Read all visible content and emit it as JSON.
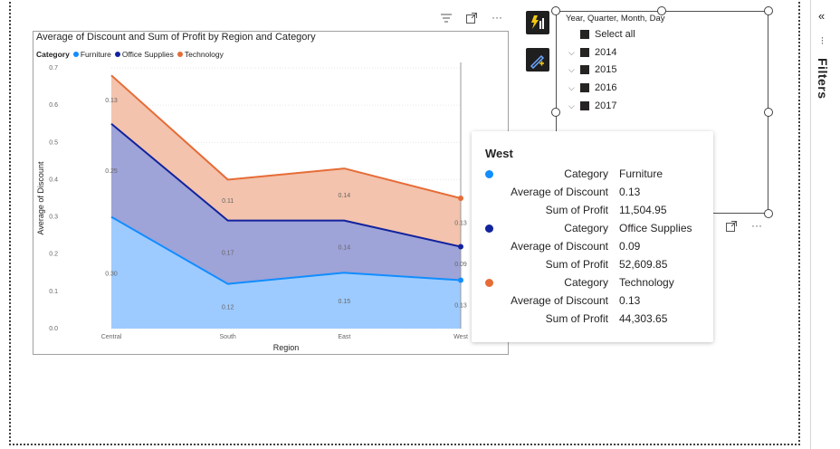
{
  "filters_pane": {
    "label": "Filters",
    "collapse_glyph": "«",
    "filter_glyph": "⫶"
  },
  "chart": {
    "title": "Average of Discount and Sum of Profit by Region and Category",
    "legend_title": "Category",
    "header_icons": [
      "filter-icon",
      "focus-mode-icon",
      "more-options-icon"
    ]
  },
  "chart_data": {
    "type": "area",
    "stacked": true,
    "categories": [
      "Central",
      "South",
      "East",
      "West"
    ],
    "series": [
      {
        "name": "Furniture",
        "color": "#118dff",
        "fill": "#9dcbff",
        "values": [
          0.3,
          0.12,
          0.15,
          0.13
        ]
      },
      {
        "name": "Office Supplies",
        "color": "#12239e",
        "fill": "#9ea3d8",
        "values": [
          0.25,
          0.17,
          0.14,
          0.09
        ]
      },
      {
        "name": "Technology",
        "color": "#e66c37",
        "fill": "#f3c3ad",
        "values": [
          0.13,
          0.11,
          0.14,
          0.13
        ]
      }
    ],
    "xlabel": "Region",
    "ylabel": "Average of Discount",
    "ylim": [
      0,
      0.7
    ],
    "yticks": [
      "0.0",
      "0.1",
      "0.2",
      "0.3",
      "0.4",
      "0.5",
      "0.6",
      "0.7"
    ],
    "grid": true,
    "legend_position": "top-left",
    "highlighted_category": "West"
  },
  "slicer": {
    "title": "Year, Quarter, Month, Day",
    "items": [
      {
        "label": "Select all",
        "expandable": false
      },
      {
        "label": "2014",
        "expandable": true
      },
      {
        "label": "2015",
        "expandable": true
      },
      {
        "label": "2016",
        "expandable": true
      },
      {
        "label": "2017",
        "expandable": true
      }
    ]
  },
  "tooltip": {
    "title": "West",
    "groups": [
      {
        "color": "#118dff",
        "rows": [
          {
            "key": "Category",
            "value": "Furniture"
          },
          {
            "key": "Average of Discount",
            "value": "0.13"
          },
          {
            "key": "Sum of Profit",
            "value": "11,504.95"
          }
        ]
      },
      {
        "color": "#12239e",
        "rows": [
          {
            "key": "Category",
            "value": "Office Supplies"
          },
          {
            "key": "Average of Discount",
            "value": "0.09"
          },
          {
            "key": "Sum of Profit",
            "value": "52,609.85"
          }
        ]
      },
      {
        "color": "#e66c37",
        "rows": [
          {
            "key": "Category",
            "value": "Technology"
          },
          {
            "key": "Average of Discount",
            "value": "0.13"
          },
          {
            "key": "Sum of Profit",
            "value": "44,303.65"
          }
        ]
      }
    ]
  }
}
